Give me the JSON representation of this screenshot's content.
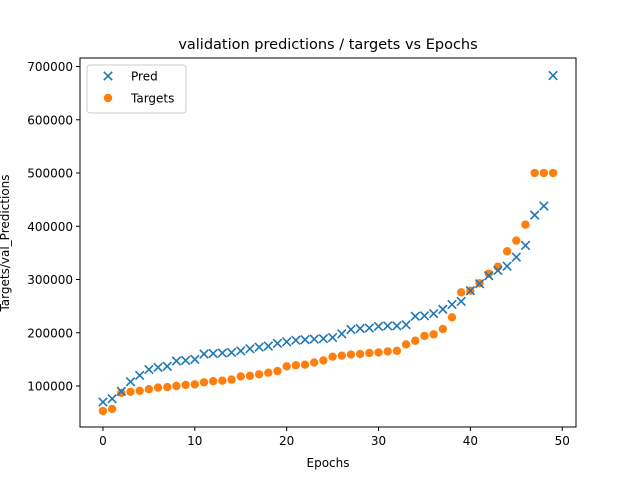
{
  "chart_data": {
    "type": "scatter",
    "title": "validation predictions / targets vs Epochs",
    "xlabel": "Epochs",
    "ylabel": "Targets/val_Predictions",
    "xlim": [
      -2.5,
      51.5
    ],
    "ylim": [
      23000,
      716000
    ],
    "xticks": [
      0,
      10,
      20,
      30,
      40,
      50
    ],
    "yticks": [
      100000,
      200000,
      300000,
      400000,
      500000,
      600000,
      700000
    ],
    "legend_position": "top-left",
    "grid": false,
    "series": [
      {
        "name": "Pred",
        "marker": "x",
        "color": "#1f77b4",
        "x": [
          0,
          1,
          2,
          3,
          4,
          5,
          6,
          7,
          8,
          9,
          10,
          11,
          12,
          13,
          14,
          15,
          16,
          17,
          18,
          19,
          20,
          21,
          22,
          23,
          24,
          25,
          26,
          27,
          28,
          29,
          30,
          31,
          32,
          33,
          34,
          35,
          36,
          37,
          38,
          39,
          40,
          41,
          42,
          43,
          44,
          45,
          46,
          47,
          48,
          49
        ],
        "y": [
          70000,
          76000,
          90000,
          108000,
          120000,
          131000,
          135000,
          137000,
          147000,
          148000,
          150000,
          160000,
          161000,
          162000,
          163000,
          166000,
          170000,
          173000,
          175000,
          180000,
          183000,
          186000,
          187000,
          188000,
          189000,
          191000,
          198000,
          206000,
          208000,
          209000,
          212000,
          213000,
          213000,
          215000,
          231000,
          232000,
          236000,
          244000,
          253000,
          259000,
          279000,
          292000,
          307000,
          317000,
          325000,
          342000,
          364000,
          421000,
          438000,
          683000
        ]
      },
      {
        "name": "Targets",
        "marker": "o",
        "color": "#ff7f0e",
        "x": [
          0,
          1,
          2,
          3,
          4,
          5,
          6,
          7,
          8,
          9,
          10,
          11,
          12,
          13,
          14,
          15,
          16,
          17,
          18,
          19,
          20,
          21,
          22,
          23,
          24,
          25,
          26,
          27,
          28,
          29,
          30,
          31,
          32,
          33,
          34,
          35,
          36,
          37,
          38,
          39,
          40,
          41,
          42,
          43,
          44,
          45,
          46,
          47,
          48,
          49
        ],
        "y": [
          53000,
          57000,
          87000,
          89000,
          91000,
          94000,
          97000,
          98000,
          100000,
          102000,
          103000,
          107000,
          109000,
          110000,
          112000,
          118000,
          119000,
          122000,
          125000,
          128000,
          137000,
          139000,
          140000,
          144000,
          148000,
          155000,
          157000,
          159000,
          160000,
          162000,
          163000,
          165000,
          166000,
          178000,
          185000,
          194000,
          197000,
          207000,
          229000,
          276000,
          279000,
          293000,
          311000,
          324000,
          353000,
          373000,
          403000,
          500000,
          500000,
          500000
        ]
      }
    ]
  }
}
